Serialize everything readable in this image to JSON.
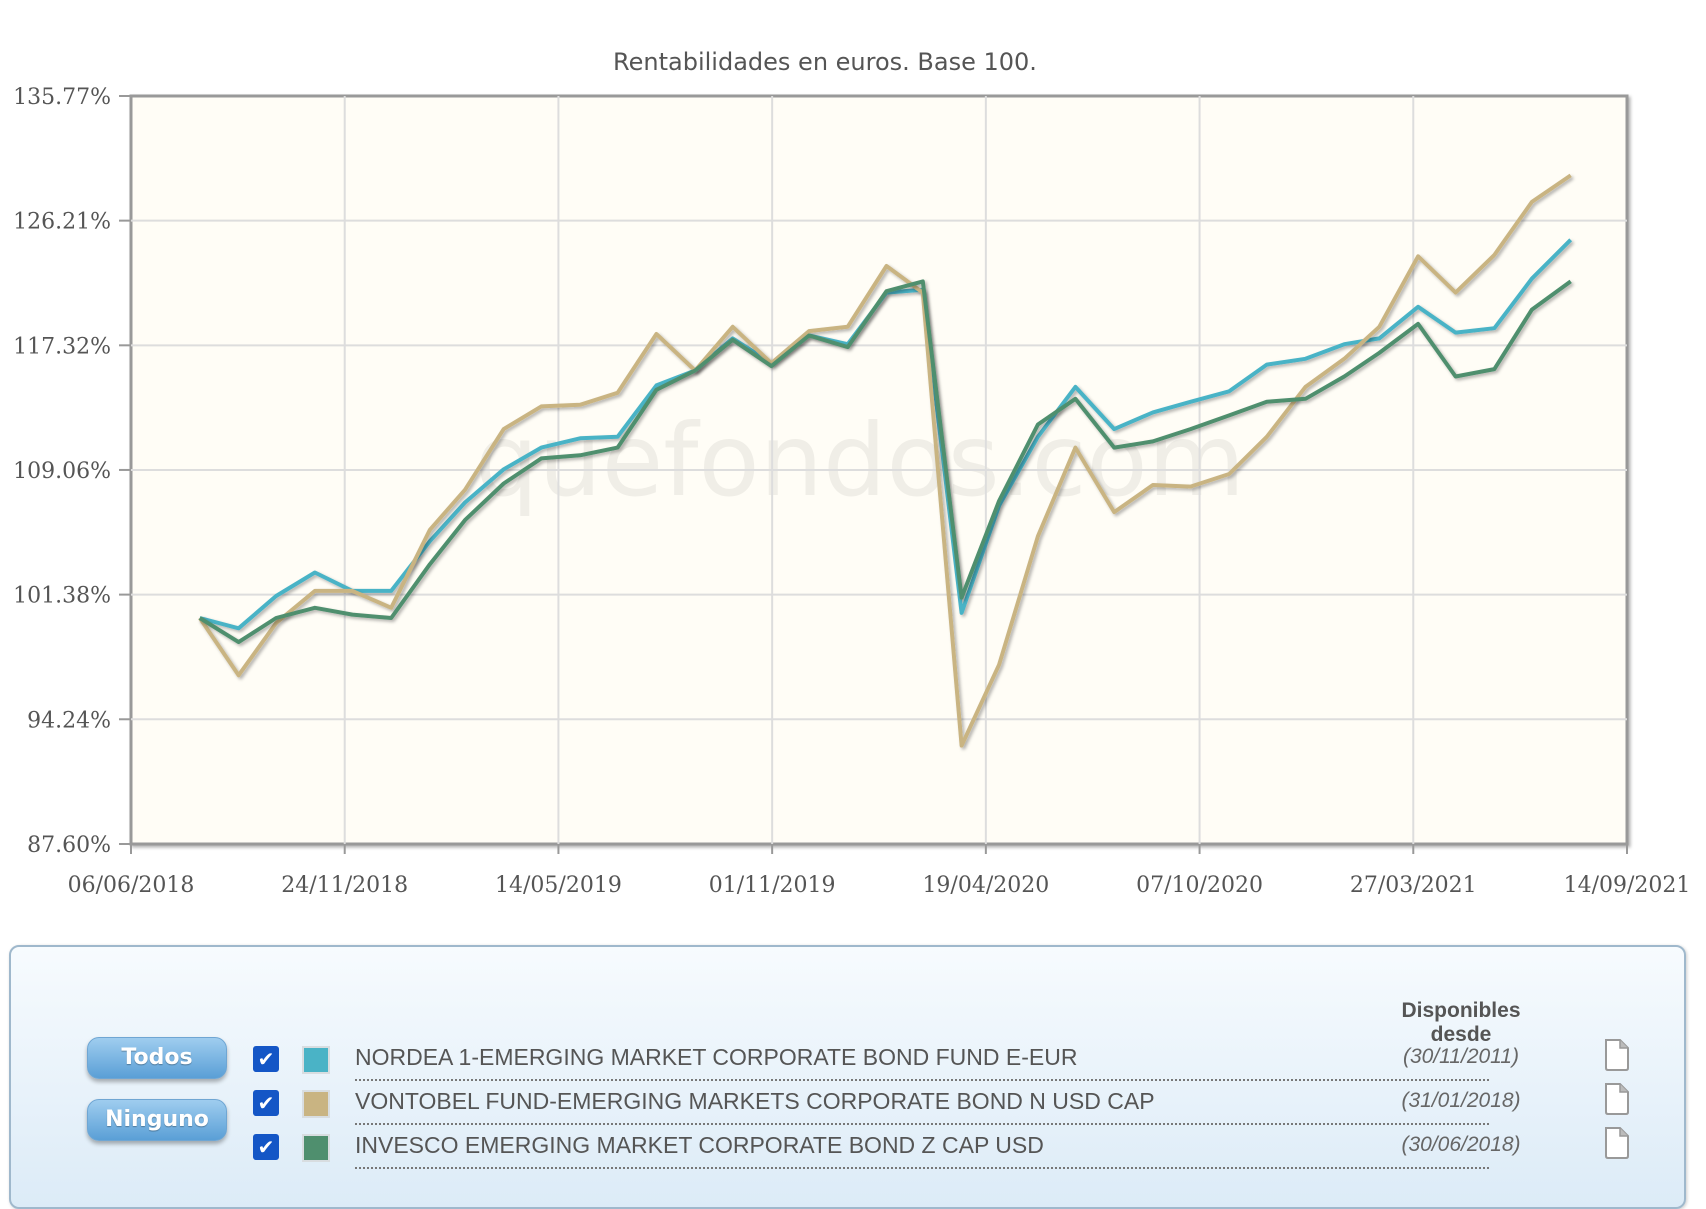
{
  "chart_data": {
    "type": "line",
    "title": "Rentabilidades en euros. Base 100.",
    "watermark": "quefondos.com",
    "y_scale": "log",
    "ylim": [
      87.6,
      135.77
    ],
    "y_ticks": [
      "87.60%",
      "94.24%",
      "101.38%",
      "109.06%",
      "117.32%",
      "126.21%",
      "135.77%"
    ],
    "y_tick_values": [
      87.6,
      94.24,
      101.38,
      109.06,
      117.32,
      126.21,
      135.77
    ],
    "xlim": [
      "2018-06-06",
      "2021-09-14"
    ],
    "x_ticks": [
      "06/06/2018",
      "24/11/2018",
      "14/05/2019",
      "01/11/2019",
      "19/04/2020",
      "07/10/2020",
      "27/03/2021",
      "14/09/2021"
    ],
    "grid": true,
    "background": "#fffdf6",
    "x": [
      "2018-07-31",
      "2018-08-31",
      "2018-09-30",
      "2018-10-31",
      "2018-11-30",
      "2018-12-31",
      "2019-01-31",
      "2019-02-28",
      "2019-03-31",
      "2019-04-30",
      "2019-05-31",
      "2019-06-30",
      "2019-07-31",
      "2019-08-31",
      "2019-09-30",
      "2019-10-31",
      "2019-11-30",
      "2019-12-31",
      "2020-01-31",
      "2020-02-29",
      "2020-03-31",
      "2020-04-30",
      "2020-05-31",
      "2020-06-30",
      "2020-07-31",
      "2020-08-31",
      "2020-09-30",
      "2020-10-31",
      "2020-11-30",
      "2020-12-31",
      "2021-01-31",
      "2021-02-28",
      "2021-03-31",
      "2021-04-30",
      "2021-05-31",
      "2021-06-30",
      "2021-07-31"
    ],
    "series": [
      {
        "name": "NORDEA 1-EMERGING MARKET CORPORATE BOND FUND E-EUR",
        "color": "#4ab3c6",
        "values": [
          100.0,
          99.4,
          101.3,
          102.7,
          101.6,
          101.6,
          104.6,
          107.0,
          109.1,
          110.5,
          111.1,
          111.2,
          114.6,
          115.6,
          117.8,
          116.1,
          118.0,
          117.4,
          121.0,
          121.2,
          100.3,
          106.8,
          111.2,
          114.5,
          111.7,
          112.8,
          113.5,
          114.2,
          116.0,
          116.4,
          117.4,
          117.8,
          120.0,
          118.2,
          118.5,
          122.0,
          124.8
        ]
      },
      {
        "name": "VONTOBEL FUND-EMERGING MARKETS CORPORATE BOND N USD CAP",
        "color": "#c9b482",
        "values": [
          100.0,
          96.7,
          99.7,
          101.6,
          101.6,
          100.6,
          105.3,
          107.8,
          111.7,
          113.2,
          113.3,
          114.1,
          118.1,
          115.6,
          118.6,
          116.1,
          118.3,
          118.6,
          122.9,
          121.0,
          92.8,
          97.3,
          104.9,
          110.5,
          106.4,
          108.1,
          108.0,
          108.8,
          111.2,
          114.5,
          116.4,
          118.6,
          123.6,
          121.0,
          123.7,
          127.6,
          129.6
        ]
      },
      {
        "name": "INVESCO EMERGING MARKET CORPORATE BOND Z CAP USD",
        "color": "#4f8f6e",
        "values": [
          100.0,
          98.6,
          100.0,
          100.6,
          100.2,
          100.0,
          103.2,
          105.9,
          108.2,
          109.8,
          110.0,
          110.5,
          114.3,
          115.6,
          117.7,
          115.9,
          118.0,
          117.2,
          121.1,
          121.8,
          101.2,
          107.1,
          112.0,
          113.7,
          110.5,
          110.9,
          111.7,
          112.6,
          113.5,
          113.7,
          115.2,
          116.8,
          118.8,
          115.2,
          115.7,
          119.8,
          121.8
        ]
      }
    ]
  },
  "panel": {
    "todos_label": "Todos",
    "ninguno_label": "Ninguno",
    "header": "Disponibles desde",
    "check_glyph": "✔",
    "funds": [
      {
        "name": "NORDEA 1-EMERGING MARKET CORPORATE BOND FUND E-EUR",
        "date": "(30/11/2011)",
        "color": "#4ab3c6",
        "checked": true,
        "icon": "document-icon"
      },
      {
        "name": "VONTOBEL FUND-EMERGING MARKETS CORPORATE BOND N USD CAP",
        "date": "(31/01/2018)",
        "color": "#c9b482",
        "checked": true,
        "icon": "document-icon"
      },
      {
        "name": "INVESCO EMERGING MARKET CORPORATE BOND Z CAP USD",
        "date": "(30/06/2018)",
        "color": "#4f8f6e",
        "checked": true,
        "icon": "document-icon"
      }
    ]
  }
}
